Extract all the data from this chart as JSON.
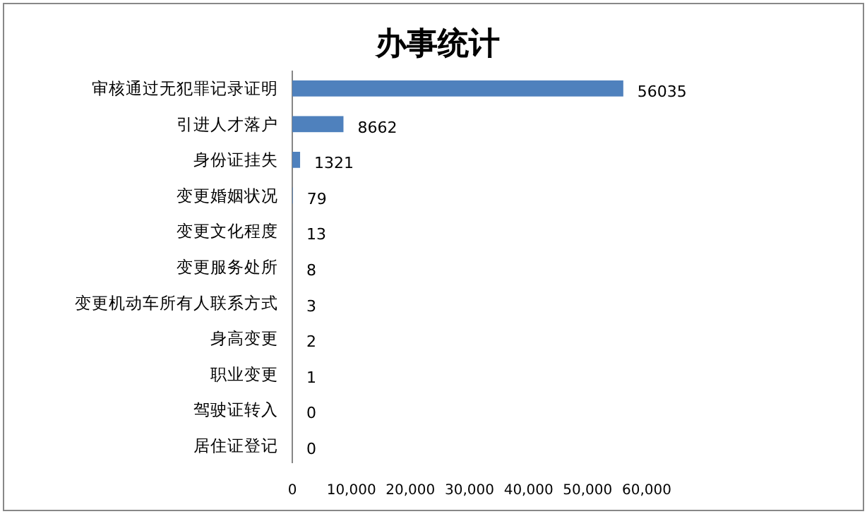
{
  "chart_data": {
    "type": "bar",
    "orientation": "horizontal",
    "title": "办事统计",
    "categories": [
      "审核通过无犯罪记录证明",
      "引进人才落户",
      "身份证挂失",
      "变更婚姻状况",
      "变更文化程度",
      "变更服务处所",
      "变更机动车所有人联系方式",
      "身高变更",
      "职业变更",
      "驾驶证转入",
      "居住证登记"
    ],
    "values": [
      56035,
      8662,
      1321,
      79,
      13,
      8,
      3,
      2,
      1,
      0,
      0
    ],
    "color": "#4f81bd",
    "data_labels": true,
    "grid": false,
    "xlim": [
      0,
      60000
    ],
    "xticks": [
      0,
      {
        "value": 10000,
        "label": "10,000"
      },
      {
        "value": 20000,
        "label": "20,000"
      },
      {
        "value": 30000,
        "label": "30,000"
      },
      {
        "value": 40000,
        "label": "40,000"
      },
      {
        "value": 50000,
        "label": "50,000"
      },
      {
        "value": 60000,
        "label": "60,000"
      }
    ]
  }
}
